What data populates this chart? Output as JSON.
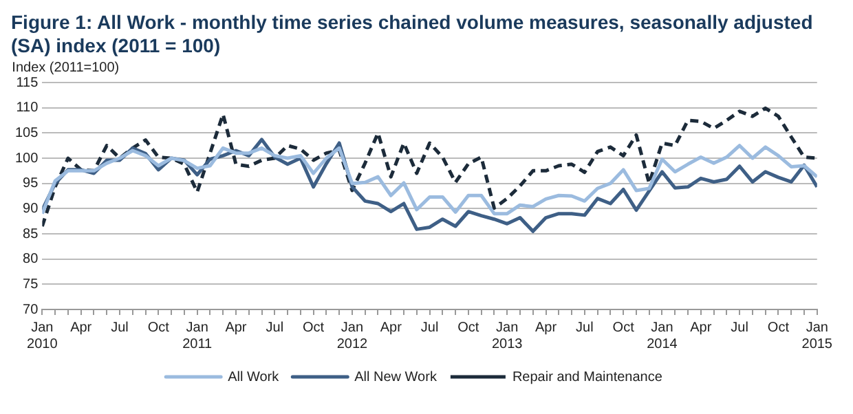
{
  "chart_data": {
    "type": "line",
    "title": "Figure 1: All Work - monthly time series chained volume measures, seasonally adjusted (SA) index (2011 = 100)",
    "ylabel": "Index (2011=100)",
    "x": [
      "2010-01",
      "2010-02",
      "2010-03",
      "2010-04",
      "2010-05",
      "2010-06",
      "2010-07",
      "2010-08",
      "2010-09",
      "2010-10",
      "2010-11",
      "2010-12",
      "2011-01",
      "2011-02",
      "2011-03",
      "2011-04",
      "2011-05",
      "2011-06",
      "2011-07",
      "2011-08",
      "2011-09",
      "2011-10",
      "2011-11",
      "2011-12",
      "2012-01",
      "2012-02",
      "2012-03",
      "2012-04",
      "2012-05",
      "2012-06",
      "2012-07",
      "2012-08",
      "2012-09",
      "2012-10",
      "2012-11",
      "2012-12",
      "2013-01",
      "2013-02",
      "2013-03",
      "2013-04",
      "2013-05",
      "2013-06",
      "2013-07",
      "2013-08",
      "2013-09",
      "2013-10",
      "2013-11",
      "2013-12",
      "2014-01",
      "2014-02",
      "2014-03",
      "2014-04",
      "2014-05",
      "2014-06",
      "2014-07",
      "2014-08",
      "2014-09",
      "2014-10",
      "2014-11",
      "2014-12",
      "2015-01"
    ],
    "series": [
      {
        "name": "All Work",
        "color": "#9bbbdf",
        "line_style": "solid",
        "values": [
          89,
          95.5,
          97.5,
          97.5,
          97.5,
          99,
          100,
          101.5,
          100.5,
          98.5,
          100,
          99.5,
          98,
          98.5,
          102,
          101,
          101,
          102,
          100.5,
          100,
          100.5,
          97,
          100,
          102,
          95,
          95.2,
          96.3,
          92.6,
          95.1,
          89.8,
          92.3,
          92.3,
          89.3,
          92.6,
          92.6,
          89,
          89,
          90.7,
          90.4,
          91.9,
          92.6,
          92.5,
          91.5,
          94,
          95,
          97.7,
          93.6,
          94,
          99.8,
          97.3,
          98.8,
          100.2,
          99,
          100.2,
          102.5,
          100,
          102.2,
          100.5,
          98.3,
          98.5,
          96.3
        ]
      },
      {
        "name": "All New Work",
        "color": "#3e5f86",
        "line_style": "solid",
        "values": [
          89.7,
          95,
          97.7,
          97.7,
          97,
          99.6,
          99.6,
          102,
          100.9,
          97.7,
          100,
          99.6,
          96.7,
          99.8,
          100.5,
          101.5,
          100.5,
          103.7,
          100.2,
          98.8,
          100,
          94.3,
          98.9,
          103,
          94.3,
          91.5,
          91,
          89.4,
          91,
          85.9,
          86.3,
          87.9,
          86.5,
          89.4,
          88.6,
          87.9,
          87,
          88.2,
          85.5,
          88.2,
          89,
          89,
          88.7,
          92,
          91,
          93.8,
          89.7,
          93.5,
          97.3,
          94.1,
          94.3,
          96,
          95.3,
          95.8,
          98.4,
          95.3,
          97.3,
          96.2,
          95.3,
          98.6,
          94.3
        ]
      },
      {
        "name": "Repair and Maintenance",
        "color": "#1c2b3a",
        "line_style": "dashed",
        "values": [
          86.5,
          94.3,
          100,
          97.7,
          97.5,
          102.5,
          100,
          102,
          103.6,
          100.2,
          100,
          98.8,
          93.3,
          101,
          108.7,
          98.8,
          98.4,
          99.6,
          100,
          102.5,
          101.8,
          99.6,
          101,
          101.6,
          93.6,
          99,
          105,
          96.3,
          103,
          97,
          103,
          100.2,
          95.2,
          98.9,
          100.2,
          90.1,
          92,
          94.5,
          97.5,
          97.5,
          98.5,
          98.8,
          97.2,
          101.3,
          102.2,
          100.5,
          104.6,
          95,
          103,
          102.5,
          107.5,
          107.3,
          105.9,
          107.5,
          109.3,
          108.3,
          109.9,
          108.3,
          104.2,
          100.2,
          100
        ]
      }
    ],
    "xlim": [
      "2010-01",
      "2015-01"
    ],
    "xticks": [
      {
        "value": "2010-01",
        "label": "Jan 2010"
      },
      {
        "value": "2010-02",
        "label": null
      },
      {
        "value": "2010-03",
        "label": null
      },
      {
        "value": "2010-04",
        "label": "Apr"
      },
      {
        "value": "2010-05",
        "label": null
      },
      {
        "value": "2010-06",
        "label": null
      },
      {
        "value": "2010-07",
        "label": "Jul"
      },
      {
        "value": "2010-08",
        "label": null
      },
      {
        "value": "2010-09",
        "label": null
      },
      {
        "value": "2010-10",
        "label": "Oct"
      },
      {
        "value": "2010-11",
        "label": null
      },
      {
        "value": "2010-12",
        "label": null
      },
      {
        "value": "2011-01",
        "label": "Jan 2011"
      },
      {
        "value": "2011-02",
        "label": null
      },
      {
        "value": "2011-03",
        "label": null
      },
      {
        "value": "2011-04",
        "label": "Apr"
      },
      {
        "value": "2011-05",
        "label": null
      },
      {
        "value": "2011-06",
        "label": null
      },
      {
        "value": "2011-07",
        "label": "Jul"
      },
      {
        "value": "2011-08",
        "label": null
      },
      {
        "value": "2011-09",
        "label": null
      },
      {
        "value": "2011-10",
        "label": "Oct"
      },
      {
        "value": "2011-11",
        "label": null
      },
      {
        "value": "2011-12",
        "label": null
      },
      {
        "value": "2012-01",
        "label": "Jan 2012"
      },
      {
        "value": "2012-02",
        "label": null
      },
      {
        "value": "2012-03",
        "label": null
      },
      {
        "value": "2012-04",
        "label": "Apr"
      },
      {
        "value": "2012-05",
        "label": null
      },
      {
        "value": "2012-06",
        "label": null
      },
      {
        "value": "2012-07",
        "label": "Jul"
      },
      {
        "value": "2012-08",
        "label": null
      },
      {
        "value": "2012-09",
        "label": null
      },
      {
        "value": "2012-10",
        "label": "Oct"
      },
      {
        "value": "2012-11",
        "label": null
      },
      {
        "value": "2012-12",
        "label": null
      },
      {
        "value": "2013-01",
        "label": "Jan 2013"
      },
      {
        "value": "2013-02",
        "label": null
      },
      {
        "value": "2013-03",
        "label": null
      },
      {
        "value": "2013-04",
        "label": "Apr"
      },
      {
        "value": "2013-05",
        "label": null
      },
      {
        "value": "2013-06",
        "label": null
      },
      {
        "value": "2013-07",
        "label": "Jul"
      },
      {
        "value": "2013-08",
        "label": null
      },
      {
        "value": "2013-09",
        "label": null
      },
      {
        "value": "2013-10",
        "label": "Oct"
      },
      {
        "value": "2013-11",
        "label": null
      },
      {
        "value": "2013-12",
        "label": null
      },
      {
        "value": "2014-01",
        "label": "Jan 2014"
      },
      {
        "value": "2014-02",
        "label": null
      },
      {
        "value": "2014-03",
        "label": null
      },
      {
        "value": "2014-04",
        "label": "Apr"
      },
      {
        "value": "2014-05",
        "label": null
      },
      {
        "value": "2014-06",
        "label": null
      },
      {
        "value": "2014-07",
        "label": "Jul"
      },
      {
        "value": "2014-08",
        "label": null
      },
      {
        "value": "2014-09",
        "label": null
      },
      {
        "value": "2014-10",
        "label": "Oct"
      },
      {
        "value": "2014-11",
        "label": null
      },
      {
        "value": "2014-12",
        "label": null
      },
      {
        "value": "2015-01",
        "label": "Jan 2015"
      }
    ],
    "ylim": [
      70,
      115
    ],
    "yticks": [
      70,
      75,
      80,
      85,
      90,
      95,
      100,
      105,
      110,
      115
    ],
    "grid": "y",
    "legend": "bottom",
    "marker": "none"
  }
}
